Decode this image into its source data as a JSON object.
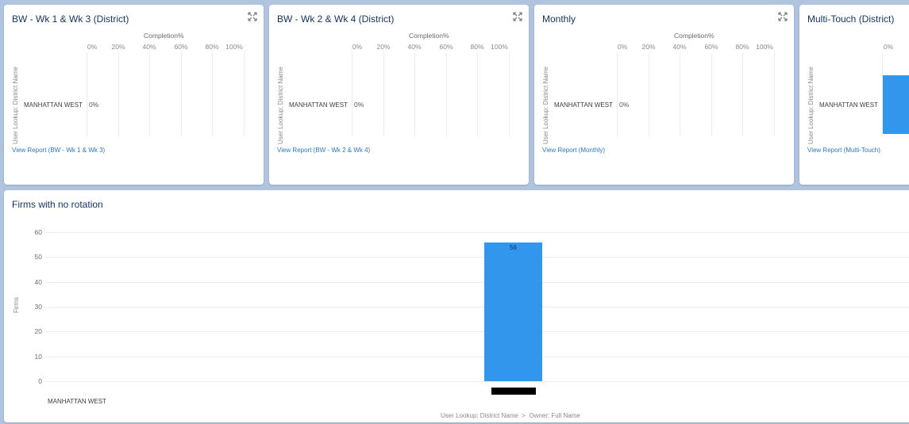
{
  "colors": {
    "background": "#b0c4df",
    "card": "#ffffff",
    "bar": "#3296ed",
    "link": "#2a7ab8"
  },
  "cards": [
    {
      "title": "BW - Wk 1 & Wk 3 (District)",
      "axis_title": "Completion%",
      "ticks": [
        "0%",
        "20%",
        "40%",
        "60%",
        "80%",
        "100%"
      ],
      "y_axis_label": "User Lookup: District Name",
      "row_label": "MANHATTAN WEST",
      "value_label": "0%",
      "link": "View Report (BW - Wk 1 & Wk 3)"
    },
    {
      "title": "BW - Wk 2 & Wk 4 (District)",
      "axis_title": "Completion%",
      "ticks": [
        "0%",
        "20%",
        "40%",
        "60%",
        "80%",
        "100%"
      ],
      "y_axis_label": "User Lookup: District Name",
      "row_label": "MANHATTAN WEST",
      "value_label": "0%",
      "link": "View Report (BW - Wk 2 & Wk 4)"
    },
    {
      "title": "Monthly",
      "axis_title": "Completion%",
      "ticks": [
        "0%",
        "20%",
        "40%",
        "60%",
        "80%",
        "100%"
      ],
      "y_axis_label": "User Lookup: District Name",
      "row_label": "MANHATTAN WEST",
      "value_label": "0%",
      "link": "View Report (Monthly)"
    },
    {
      "title": "Multi-Touch (District)",
      "axis_title": "",
      "ticks": [
        "0%"
      ],
      "y_axis_label": "User Lookup: District Name",
      "row_label": "MANHATTAN WEST",
      "value_label": "",
      "link": "View Report (Multi-Touch)"
    }
  ],
  "bottom": {
    "title": "Firms with no rotation",
    "ylabel": "Firms",
    "xlabel": "User Lookup: District Name  >  Owner: Full Name",
    "category": "MANHATTAN WEST"
  },
  "chart_data": [
    {
      "type": "bar",
      "orientation": "horizontal",
      "title": "BW - Wk 1 & Wk 3 (District)",
      "xlabel": "Completion%",
      "ylabel": "User Lookup: District Name",
      "categories": [
        "MANHATTAN WEST"
      ],
      "values": [
        0
      ],
      "xlim": [
        0,
        100
      ]
    },
    {
      "type": "bar",
      "orientation": "horizontal",
      "title": "BW - Wk 2 & Wk 4 (District)",
      "xlabel": "Completion%",
      "ylabel": "User Lookup: District Name",
      "categories": [
        "MANHATTAN WEST"
      ],
      "values": [
        0
      ],
      "xlim": [
        0,
        100
      ]
    },
    {
      "type": "bar",
      "orientation": "horizontal",
      "title": "Monthly",
      "xlabel": "Completion%",
      "ylabel": "User Lookup: District Name",
      "categories": [
        "MANHATTAN WEST"
      ],
      "values": [
        0
      ],
      "xlim": [
        0,
        100
      ]
    },
    {
      "type": "bar",
      "orientation": "vertical",
      "title": "Firms with no rotation",
      "xlabel": "User Lookup: District Name  >  Owner: Full Name",
      "ylabel": "Firms",
      "categories": [
        "MANHATTAN WEST"
      ],
      "values": [
        56
      ],
      "value_labels": [
        "56"
      ],
      "ylim": [
        0,
        60
      ],
      "yticks": [
        0,
        10,
        20,
        30,
        40,
        50,
        60
      ],
      "grid": true
    }
  ]
}
